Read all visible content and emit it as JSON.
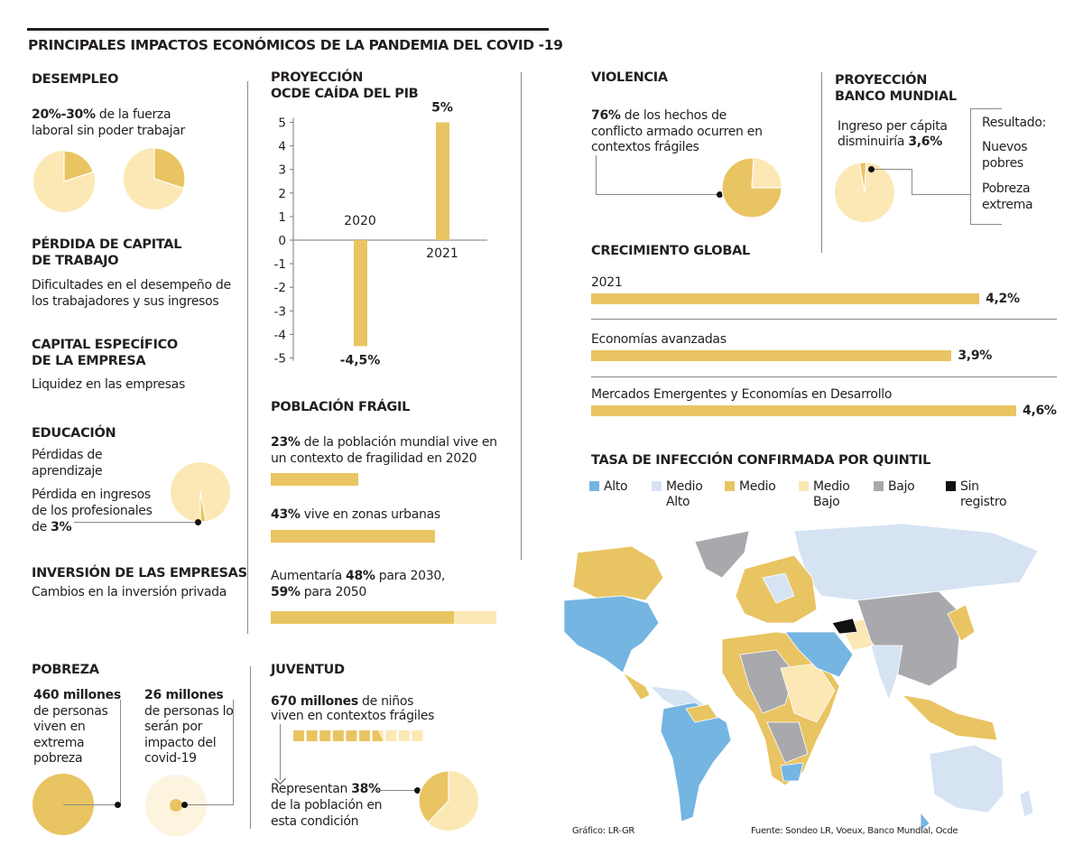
{
  "title": "PRINCIPALES IMPACTOS ECONÓMICOS DE LA PANDEMIA DEL COVID -19",
  "colors": {
    "gold": "#e9c462",
    "light": "#fbe8b4",
    "blue": "#74b5e2",
    "light_blue": "#d5e3f3",
    "grey": "#a8a8ad",
    "black": "#111111"
  },
  "desempleo": {
    "title": "DESEMPLEO",
    "bold": "20%-30%",
    "text1": " de la fuerza",
    "text2": "laboral sin poder trabajar",
    "pies": [
      20,
      30
    ]
  },
  "capital_trabajo": {
    "title1": "PÉRDIDA DE CAPITAL",
    "title2": "DE TRABAJO",
    "text1": "Dificultades en el desempeño de",
    "text2": "los trabajadores y sus ingresos"
  },
  "capital_empresa": {
    "title1": "CAPITAL ESPECÍFICO",
    "title2": "DE LA EMPRESA",
    "text": "Liquidez en las empresas"
  },
  "educacion": {
    "title": "EDUCACIÓN",
    "text1": "Pérdidas de",
    "text2": "aprendizaje",
    "text3": "Pérdida en ingresos",
    "text4": "de los profesionales",
    "text5": "de ",
    "bold": "3%",
    "pie": 3
  },
  "inversion": {
    "title": "INVERSIÓN DE LAS EMPRESAS",
    "text": "Cambios en la inversión privada"
  },
  "pobreza": {
    "title": "POBREZA",
    "a_bold": "460 millones",
    "a_lines": [
      "de personas",
      "viven en",
      "extrema",
      "pobreza"
    ],
    "b_bold": "26 millones",
    "b_lines": [
      "de personas lo",
      "serán por",
      "impacto del",
      "covid-19"
    ]
  },
  "pib": {
    "title1": "PROYECCIÓN",
    "title2": "OCDE CAÍDA DEL PIB"
  },
  "fragil": {
    "title": "POBLACIÓN FRÁGIL",
    "s1_bold": "23%",
    "s1_text": " de la población mundial vive en",
    "s1_text2": "un contexto de fragilidad en 2020",
    "s1_value": 23,
    "s2_bold": "43%",
    "s2_text": " vive en zonas urbanas",
    "s2_value": 43,
    "s3_pre": "Aumentaría ",
    "s3_bold1": "48%",
    "s3_mid": " para 2030,",
    "s3_bold2": "59%",
    "s3_post": " para 2050",
    "s3_values": [
      48,
      59
    ]
  },
  "juventud": {
    "title": "JUVENTUD",
    "bold": "670 millones",
    "text1": " de niños",
    "text2": "viven en contextos frágiles",
    "squares_filled": 6.5,
    "squares_total": 10,
    "r_pre": "Representan ",
    "r_bold": "38%",
    "r_text2": "de la población en",
    "r_text3": "esta condición",
    "pie": 38
  },
  "violencia": {
    "title": "VIOLENCIA",
    "bold": "76%",
    "text1": " de los hechos de",
    "text2": "conflicto armado ocurren en",
    "text3": "contextos frágiles",
    "pie": 76
  },
  "banco": {
    "title1": "PROYECCIÓN",
    "title2": "BANCO MUNDIAL",
    "text1": "Ingreso per cápita",
    "text2": "disminuiría ",
    "bold": "3,6%",
    "pie": 3.6,
    "result_label": "Resultado:",
    "r1a": "Nuevos",
    "r1b": "pobres",
    "r2a": "Pobreza",
    "r2b": "extrema"
  },
  "crecimiento": {
    "title": "CRECIMIENTO GLOBAL"
  },
  "infeccion": {
    "title": "TASA DE INFECCIÓN CONFIRMADA POR QUINTIL",
    "legend": [
      {
        "l1": "Alto",
        "l2": "",
        "color": "#74b5e2"
      },
      {
        "l1": "Medio",
        "l2": "Alto",
        "color": "#d5e3f3"
      },
      {
        "l1": "Medio",
        "l2": "",
        "color": "#e9c462"
      },
      {
        "l1": "Medio",
        "l2": "Bajo",
        "color": "#fbe8b4"
      },
      {
        "l1": "Bajo",
        "l2": "",
        "color": "#a8a8ad"
      },
      {
        "l1": "Sin",
        "l2": "registro",
        "color": "#111111"
      }
    ]
  },
  "footer": {
    "credit": "Gráfico: LR-GR",
    "source": "Fuente: Sondeo LR, Voeux, Banco Mundial, Ocde"
  },
  "chart_data": [
    {
      "type": "bar",
      "title": "PROYECCIÓN OCDE CAÍDA DEL PIB",
      "categories": [
        "2020",
        "2021"
      ],
      "values": [
        -4.5,
        5
      ],
      "labels": [
        "-4,5%",
        "5%"
      ],
      "ylim": [
        -5,
        5
      ],
      "yticks": [
        "5",
        "4",
        "3",
        "2",
        "1",
        "0",
        "-1",
        "-2",
        "-3",
        "-4",
        "-5"
      ]
    },
    {
      "type": "bar",
      "title": "CRECIMIENTO GLOBAL",
      "orientation": "horizontal",
      "categories": [
        "2021",
        "Economías avanzadas",
        "Mercados Emergentes y Economías en Desarrollo"
      ],
      "values": [
        4.2,
        3.9,
        4.6
      ],
      "labels": [
        "4,2%",
        "3,9%",
        "4,6%"
      ]
    }
  ]
}
